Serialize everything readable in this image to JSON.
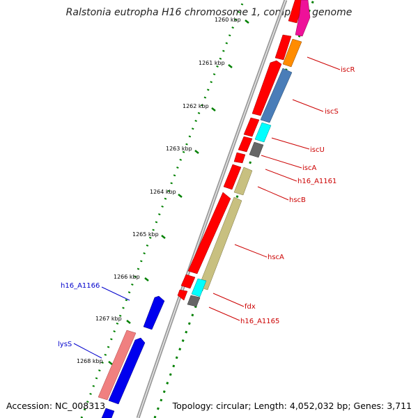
{
  "title": "Ralstonia eutropha H16 chromosome 1, complete genome",
  "footer": {
    "accession": "Accession: NC_008313",
    "stats": "Topology: circular; Length: 4,052,032 bp; Genes: 3,711"
  },
  "ticks": [
    "1260 kbp",
    "1261 kbp",
    "1262 kbp",
    "1263 kbp",
    "1264 kbp",
    "1265 kbp",
    "1266 kbp",
    "1267 kbp",
    "1268 kbp"
  ],
  "genes_right": [
    "iscR",
    "iscS",
    "iscU",
    "iscA",
    "h16_A1161",
    "hscB",
    "hscA",
    "fdx",
    "h16_A1165"
  ],
  "genes_left": [
    "h16_A1166",
    "lysS"
  ],
  "colors": {
    "red_gene": "#ff0000",
    "blue_gene": "#0000ee",
    "pink_gene": "#f08080",
    "magenta_gene": "#ee1199",
    "orange_gene": "#ff8c00",
    "steelblue_gene": "#4a7db8",
    "cyan_gene": "#00ffff",
    "gray_gene": "#666666",
    "khaki_gene": "#c8c080",
    "tick_green": "#008000",
    "label_red": "#cc0000",
    "label_blue": "#0000cc",
    "backbone": "#888888"
  }
}
